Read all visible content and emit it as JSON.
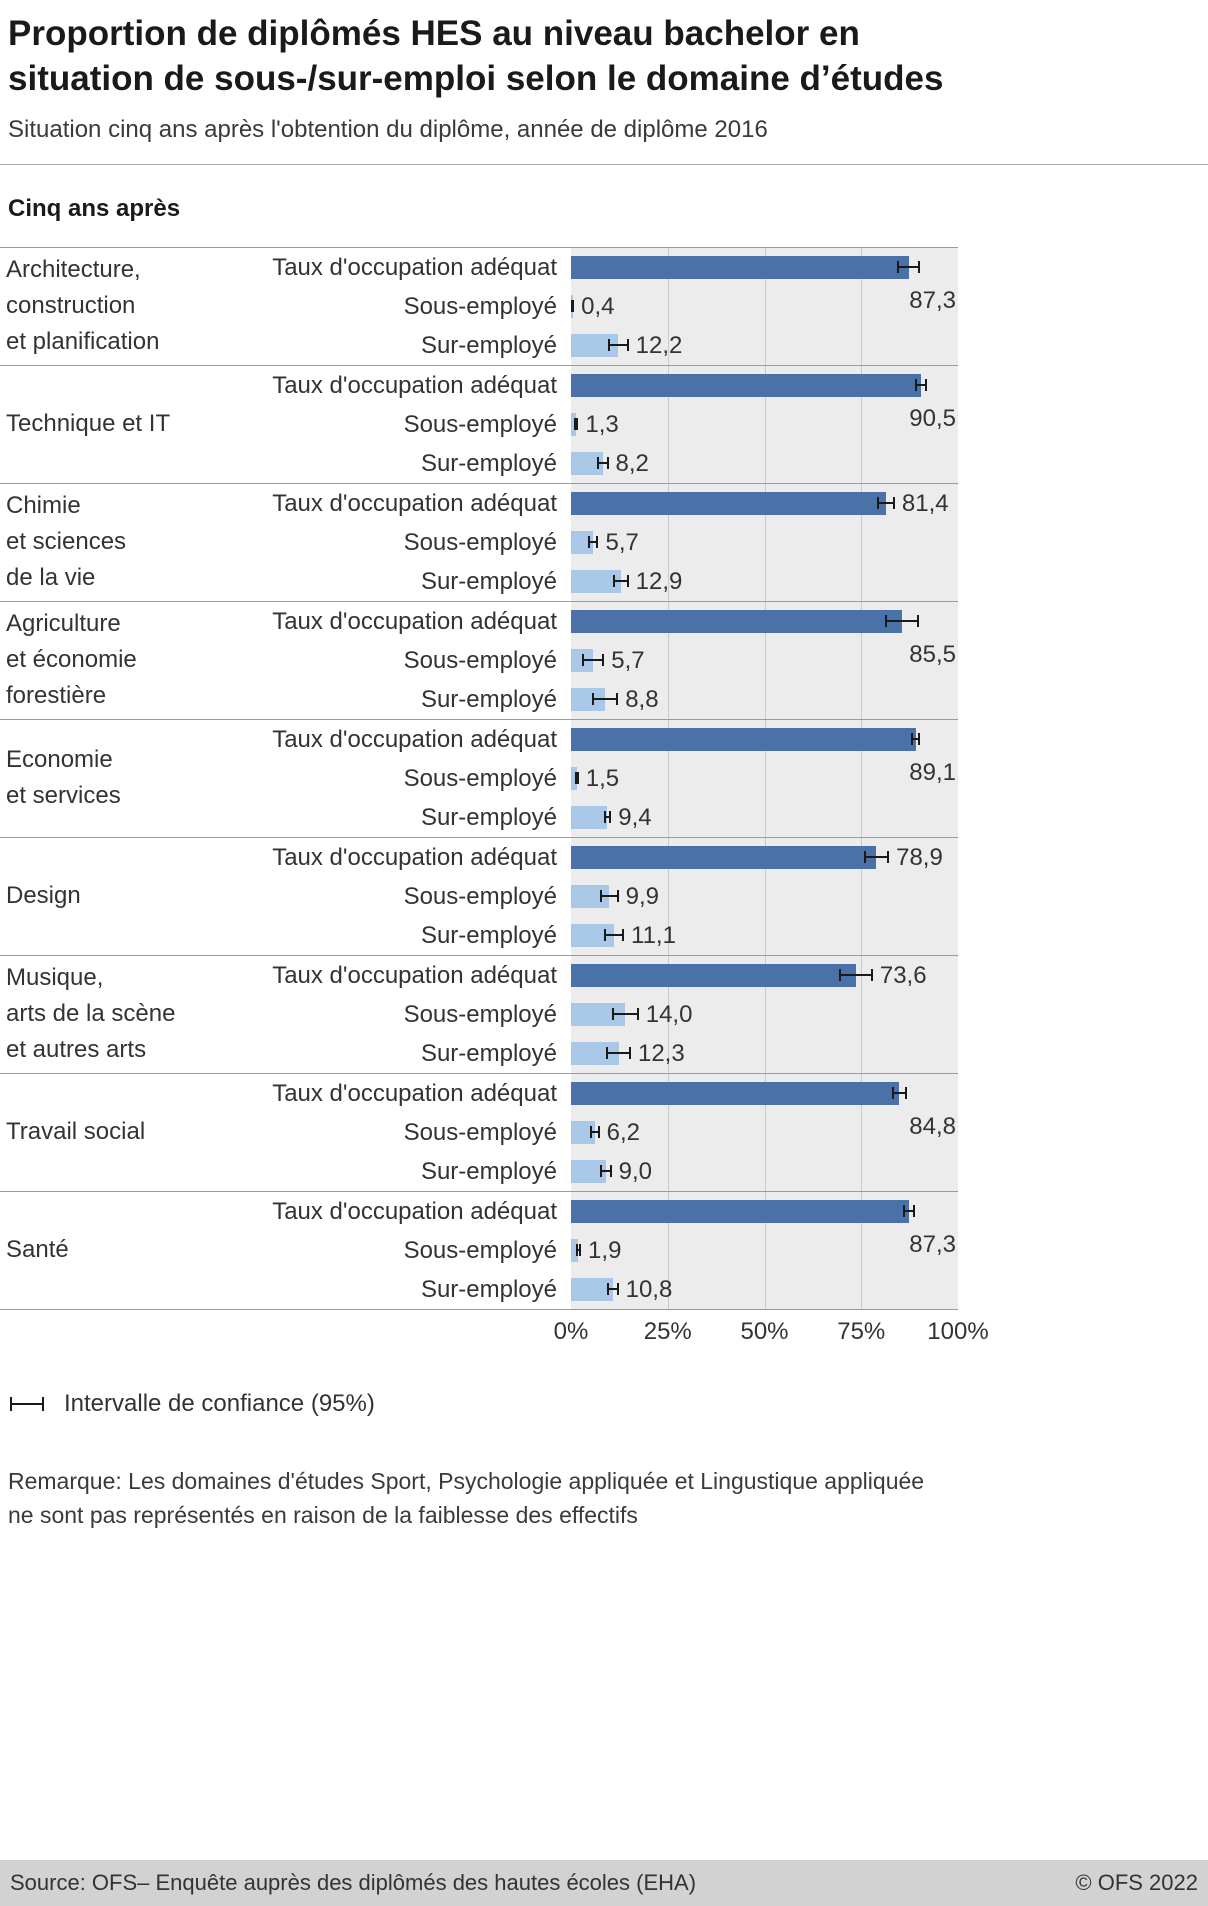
{
  "header": {
    "title_line1": "Proportion de diplômés HES au niveau bachelor en",
    "title_line2": "situation de sous-/sur-emploi selon le domaine d’études",
    "subtitle": "Situation cinq ans après l'obtention du diplôme, année de diplôme 2016"
  },
  "section_label": "Cinq ans après",
  "legend_label": "Intervalle de confiance (95%)",
  "remark": {
    "line1": "Remarque: Les domaines d'études Sport, Psychologie appliquée et Lingustique appliquée",
    "line2": "ne sont pas représentés en raison de la faiblesse des effectifs"
  },
  "footer": {
    "source": "Source: OFS– Enquête auprès des diplômés des hautes écoles (EHA)",
    "copyright": "© OFS 2022"
  },
  "chart_data": {
    "type": "bar",
    "orientation": "horizontal",
    "unit": "%",
    "xlim": [
      0,
      100
    ],
    "x_ticks": [
      "0%",
      "25%",
      "50%",
      "75%",
      "100%"
    ],
    "grid_positions": [
      25,
      50,
      75
    ],
    "legend_position": "bottom",
    "bar_types": [
      "Taux d'occupation adéquat",
      "Sous-employé",
      "Sur-employé"
    ],
    "colors": {
      "bar_adequate": "#4a72a8",
      "bar_light": "#a9c7e6",
      "plot_bg": "#ececec",
      "gridline": "#c9c9c9",
      "error_bar": "#1a1a1a"
    },
    "groups": [
      {
        "domain_lines": [
          "Architecture,",
          "construction",
          "et planification"
        ],
        "bars": [
          {
            "label": "Taux d'occupation adéquat",
            "value": 87.3,
            "display": "87,3",
            "ci": 3.0,
            "label_below": true
          },
          {
            "label": "Sous-employé",
            "value": 0.4,
            "display": "0,4",
            "ci": 0.4,
            "label_below": false
          },
          {
            "label": "Sur-employé",
            "value": 12.2,
            "display": "12,2",
            "ci": 2.7,
            "label_below": false
          }
        ]
      },
      {
        "domain_lines": [
          "Technique et IT"
        ],
        "bars": [
          {
            "label": "Taux d'occupation adéquat",
            "value": 90.5,
            "display": "90,5",
            "ci": 1.6,
            "label_below": true
          },
          {
            "label": "Sous-employé",
            "value": 1.3,
            "display": "1,3",
            "ci": 0.6,
            "label_below": false
          },
          {
            "label": "Sur-employé",
            "value": 8.2,
            "display": "8,2",
            "ci": 1.5,
            "label_below": false
          }
        ]
      },
      {
        "domain_lines": [
          "Chimie",
          "et sciences",
          "de la vie"
        ],
        "bars": [
          {
            "label": "Taux d'occupation adéquat",
            "value": 81.4,
            "display": "81,4",
            "ci": 2.3,
            "label_below": false
          },
          {
            "label": "Sous-employé",
            "value": 5.7,
            "display": "5,7",
            "ci": 1.4,
            "label_below": false
          },
          {
            "label": "Sur-employé",
            "value": 12.9,
            "display": "12,9",
            "ci": 2.0,
            "label_below": false
          }
        ]
      },
      {
        "domain_lines": [
          "Agriculture",
          "et économie",
          "forestière"
        ],
        "bars": [
          {
            "label": "Taux d'occupation adéquat",
            "value": 85.5,
            "display": "85,5",
            "ci": 4.4,
            "label_below": true
          },
          {
            "label": "Sous-employé",
            "value": 5.7,
            "display": "5,7",
            "ci": 2.9,
            "label_below": false
          },
          {
            "label": "Sur-employé",
            "value": 8.8,
            "display": "8,8",
            "ci": 3.4,
            "label_below": false
          }
        ]
      },
      {
        "domain_lines": [
          "Economie",
          "et services"
        ],
        "bars": [
          {
            "label": "Taux d'occupation adéquat",
            "value": 89.1,
            "display": "89,1",
            "ci": 1.2,
            "label_below": true
          },
          {
            "label": "Sous-employé",
            "value": 1.5,
            "display": "1,5",
            "ci": 0.5,
            "label_below": false
          },
          {
            "label": "Sur-employé",
            "value": 9.4,
            "display": "9,4",
            "ci": 1.0,
            "label_below": false
          }
        ]
      },
      {
        "domain_lines": [
          "Design"
        ],
        "bars": [
          {
            "label": "Taux d'occupation adéquat",
            "value": 78.9,
            "display": "78,9",
            "ci": 3.3,
            "label_below": false
          },
          {
            "label": "Sous-employé",
            "value": 9.9,
            "display": "9,9",
            "ci": 2.4,
            "label_below": false
          },
          {
            "label": "Sur-employé",
            "value": 11.1,
            "display": "11,1",
            "ci": 2.6,
            "label_below": false
          }
        ]
      },
      {
        "domain_lines": [
          "Musique,",
          "arts de la scène",
          "et autres arts"
        ],
        "bars": [
          {
            "label": "Taux d'occupation adéquat",
            "value": 73.6,
            "display": "73,6",
            "ci": 4.4,
            "label_below": false
          },
          {
            "label": "Sous-employé",
            "value": 14.0,
            "display": "14,0",
            "ci": 3.5,
            "label_below": false
          },
          {
            "label": "Sur-employé",
            "value": 12.3,
            "display": "12,3",
            "ci": 3.2,
            "label_below": false
          }
        ]
      },
      {
        "domain_lines": [
          "Travail social"
        ],
        "bars": [
          {
            "label": "Taux d'occupation adéquat",
            "value": 84.8,
            "display": "84,8",
            "ci": 1.9,
            "label_below": true
          },
          {
            "label": "Sous-employé",
            "value": 6.2,
            "display": "6,2",
            "ci": 1.2,
            "label_below": false
          },
          {
            "label": "Sur-employé",
            "value": 9.0,
            "display": "9,0",
            "ci": 1.5,
            "label_below": false
          }
        ]
      },
      {
        "domain_lines": [
          "Santé"
        ],
        "bars": [
          {
            "label": "Taux d'occupation adéquat",
            "value": 87.3,
            "display": "87,3",
            "ci": 1.6,
            "label_below": true
          },
          {
            "label": "Sous-employé",
            "value": 1.9,
            "display": "1,9",
            "ci": 0.7,
            "label_below": false
          },
          {
            "label": "Sur-employé",
            "value": 10.8,
            "display": "10,8",
            "ci": 1.5,
            "label_below": false
          }
        ]
      }
    ]
  }
}
